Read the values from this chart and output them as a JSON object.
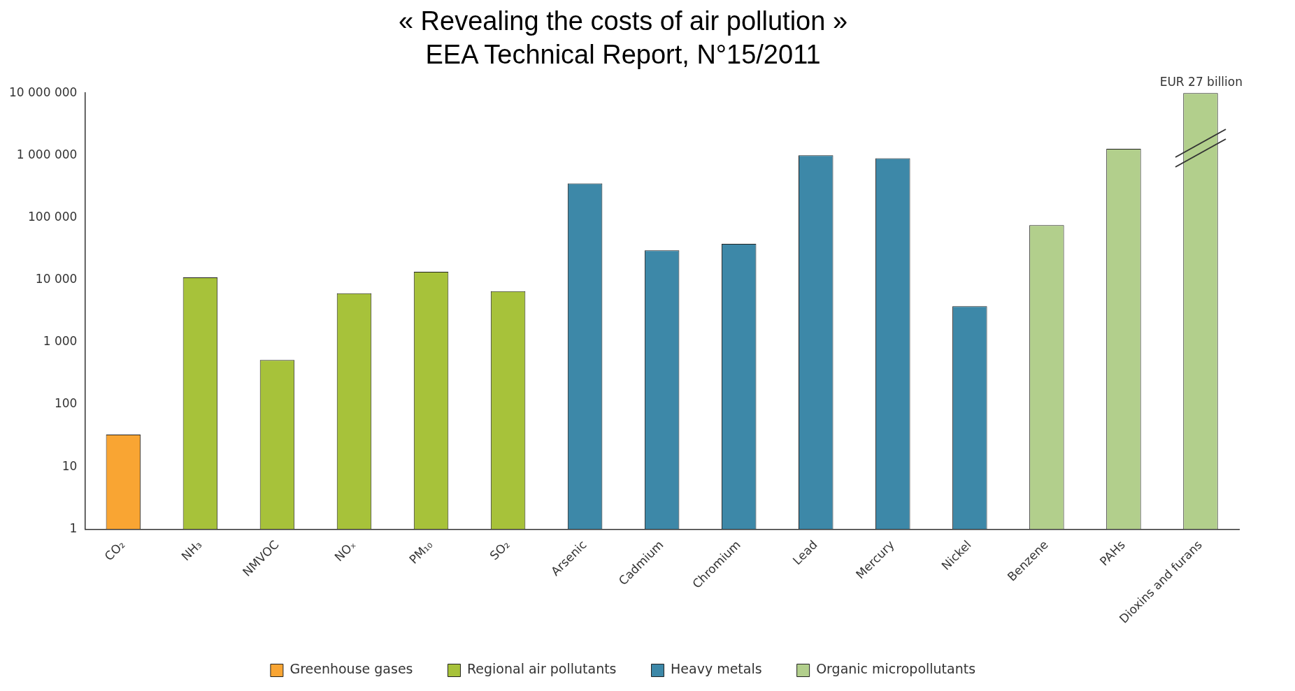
{
  "chart_data": {
    "type": "bar",
    "title": "« Revealing the costs of air pollution »",
    "subtitle": "EEA Technical Report, N°15/2011",
    "categories": [
      "CO₂",
      "NH₃",
      "NMVOC",
      "NOₓ",
      "PM₁₀",
      "SO₂",
      "Arsenic",
      "Cadmium",
      "Chromium",
      "Lead",
      "Mercury",
      "Nickel",
      "Benzene",
      "PAHs",
      "Dioxins and furans"
    ],
    "series": [
      {
        "name": "Greenhouse gases",
        "color": "#f9a533",
        "values": [
          33,
          null,
          null,
          null,
          null,
          null,
          null,
          null,
          null,
          null,
          null,
          null,
          null,
          null,
          null
        ]
      },
      {
        "name": "Regional air pollutants",
        "color": "#a7c23a",
        "values": [
          null,
          11000,
          520,
          6100,
          13500,
          6600,
          null,
          null,
          null,
          null,
          null,
          null,
          null,
          null,
          null
        ]
      },
      {
        "name": "Heavy metals",
        "color": "#3d88a8",
        "values": [
          null,
          null,
          null,
          null,
          null,
          null,
          355000,
          30000,
          38000,
          1000000,
          900000,
          3800,
          null,
          null,
          null
        ]
      },
      {
        "name": "Organic micropollutants",
        "color": "#b2cf8c",
        "values": [
          null,
          null,
          null,
          null,
          null,
          null,
          null,
          null,
          null,
          null,
          null,
          null,
          76000,
          1270000,
          10000000
        ]
      }
    ],
    "log": "y",
    "ylim": [
      1,
      10000000
    ],
    "yticks": [
      1,
      10,
      100,
      {
        "value": 1000,
        "label": "1 000"
      },
      {
        "value": 10000,
        "label": "10 000"
      },
      {
        "value": 100000,
        "label": "100 000"
      },
      {
        "value": 1000000,
        "label": "1 000 000"
      },
      {
        "value": 10000000,
        "label": "10 000 000"
      }
    ],
    "grid": false,
    "legend": "bottom",
    "annotations": [
      {
        "text": "EUR 27 billion",
        "x": "Dioxins and furans",
        "y": 10000000
      }
    ]
  }
}
